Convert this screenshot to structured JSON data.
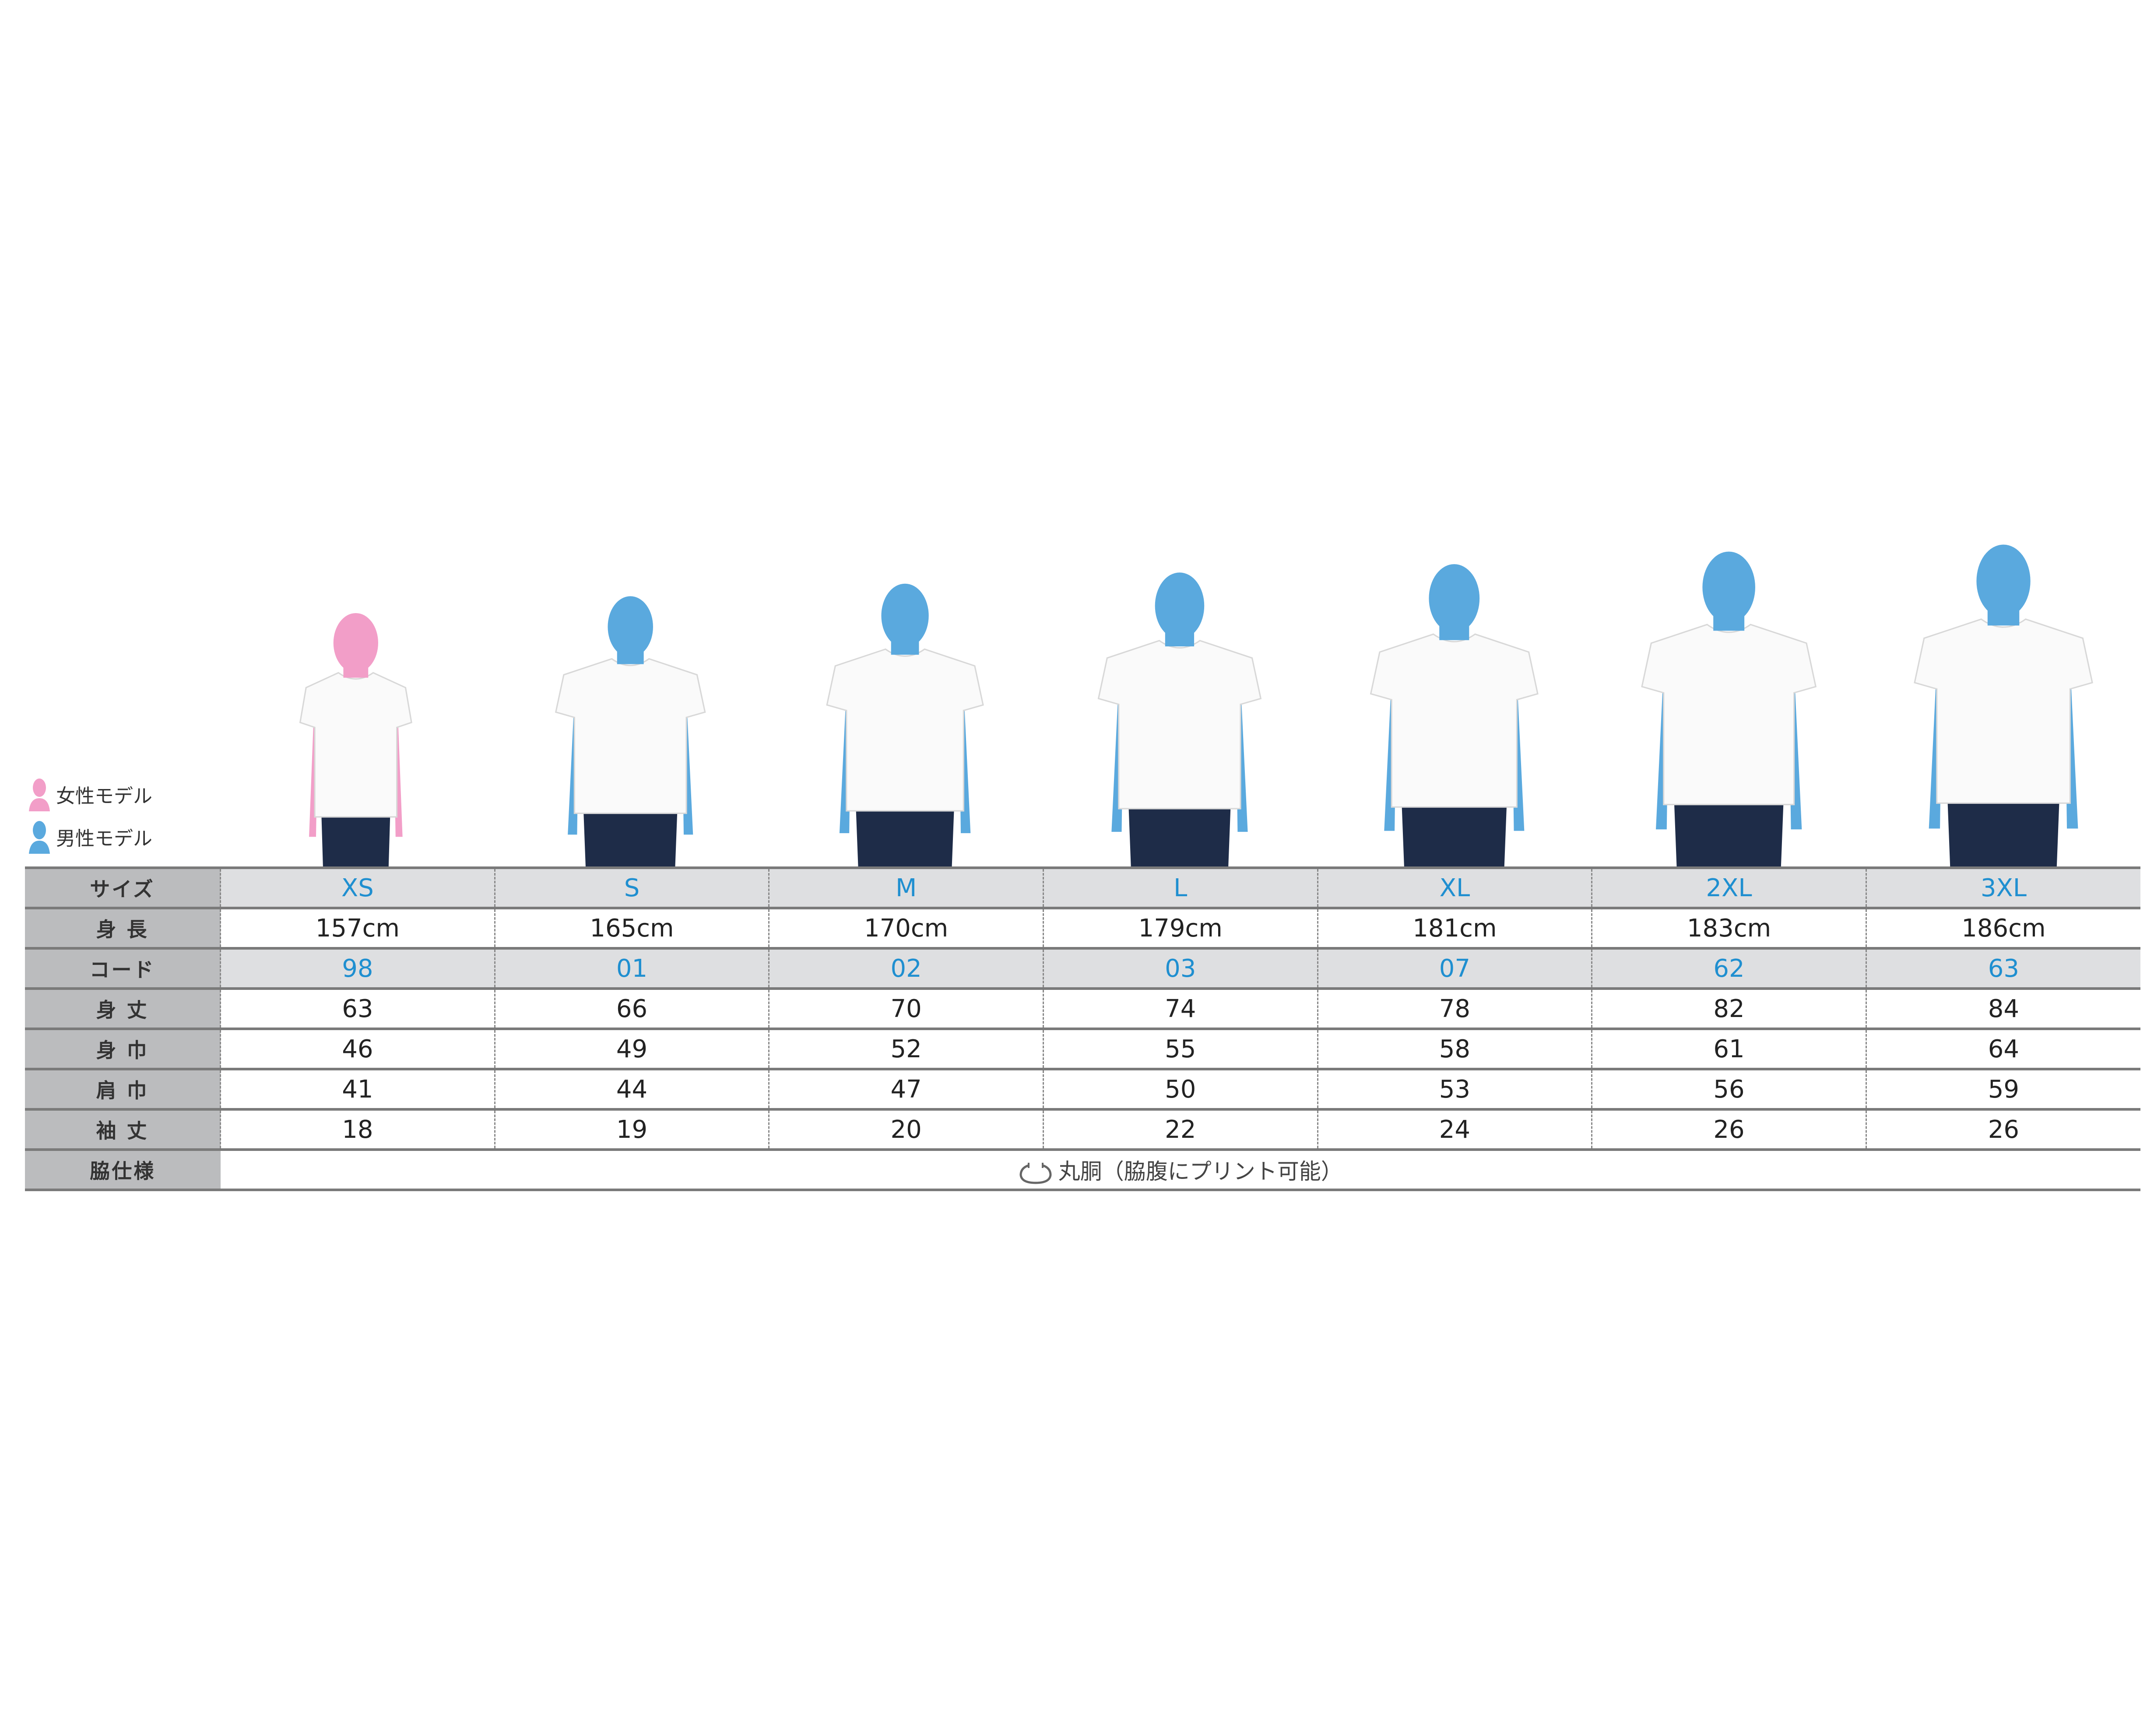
{
  "legend": {
    "female": "女性モデル",
    "male": "男性モデル"
  },
  "colors": {
    "female": "#f29ec8",
    "male": "#5aa9de",
    "accent": "#1f8fd0",
    "jeans": "#1e2c48"
  },
  "models": [
    {
      "size": "XS",
      "gender": "female"
    },
    {
      "size": "S",
      "gender": "male"
    },
    {
      "size": "M",
      "gender": "male"
    },
    {
      "size": "L",
      "gender": "male"
    },
    {
      "size": "XL",
      "gender": "male"
    },
    {
      "size": "2XL",
      "gender": "male"
    },
    {
      "size": "3XL",
      "gender": "male"
    }
  ],
  "table": {
    "rows": [
      {
        "label": "サイズ",
        "values": [
          "XS",
          "S",
          "M",
          "L",
          "XL",
          "2XL",
          "3XL"
        ],
        "accent": true,
        "shade": true
      },
      {
        "label": "身 長",
        "values": [
          "157cm",
          "165cm",
          "170cm",
          "179cm",
          "181cm",
          "183cm",
          "186cm"
        ]
      },
      {
        "label": "コード",
        "values": [
          "98",
          "01",
          "02",
          "03",
          "07",
          "62",
          "63"
        ],
        "accent": true,
        "shade": true
      },
      {
        "label": "身 丈",
        "values": [
          "63",
          "66",
          "70",
          "74",
          "78",
          "82",
          "84"
        ]
      },
      {
        "label": "身 巾",
        "values": [
          "46",
          "49",
          "52",
          "55",
          "58",
          "61",
          "64"
        ]
      },
      {
        "label": "肩 巾",
        "values": [
          "41",
          "44",
          "47",
          "50",
          "53",
          "56",
          "59"
        ]
      },
      {
        "label": "袖 丈",
        "values": [
          "18",
          "19",
          "20",
          "22",
          "24",
          "26",
          "26"
        ]
      }
    ],
    "side": {
      "label": "脇仕様",
      "icon": "circular-body-icon",
      "value": "丸胴（脇腹にプリント可能）"
    }
  }
}
